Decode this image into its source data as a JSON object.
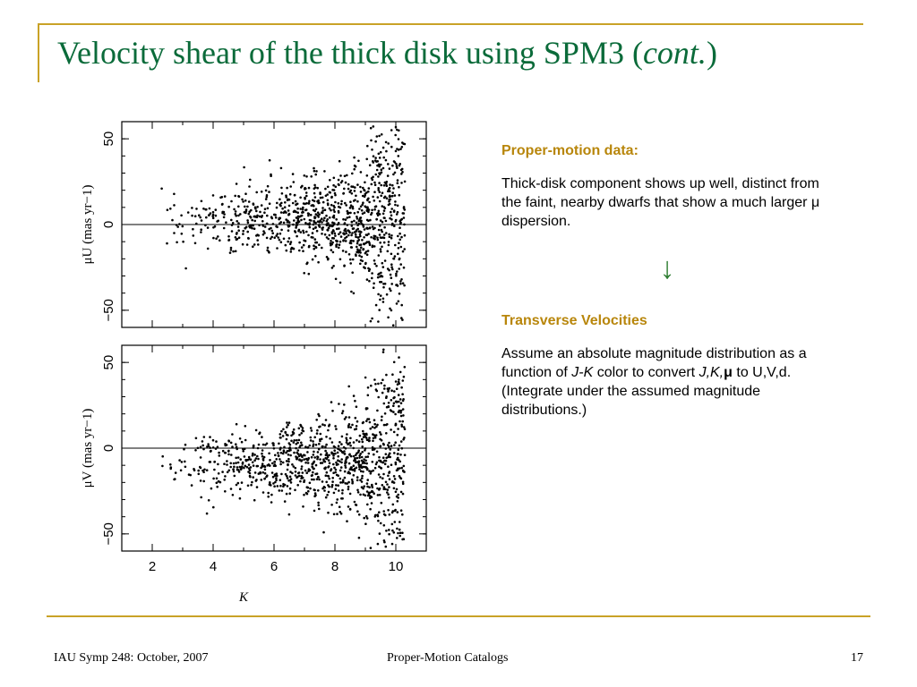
{
  "slide": {
    "title_main": "Velocity shear of the thick disk using SPM3 (",
    "title_italic": "cont.",
    "title_end": ")"
  },
  "right": {
    "heading1": "Proper-motion data:",
    "para1": "Thick-disk component shows up well, distinct from the faint, nearby dwarfs that show a much larger μ dispersion.",
    "arrow": "↓",
    "heading2": "Transverse Velocities",
    "para2": {
      "a": "Assume an absolute magnitude distribution as a function of ",
      "jk": "J-K",
      "b": " color to convert ",
      "jkm": "J,K,",
      "mu": "μ",
      "c": " to U,V,d.  (Integrate under the assumed magnitude distributions.)"
    }
  },
  "footer": {
    "left": "IAU Symp 248: October, 2007",
    "center": "Proper-Motion Catalogs",
    "right": "17"
  },
  "chart_data": [
    {
      "type": "scatter",
      "title": "",
      "xlabel": "K",
      "ylabel": "μU (mas yr−1)",
      "xlim": [
        1,
        11
      ],
      "ylim": [
        -60,
        60
      ],
      "yticks": [
        50,
        0,
        -50
      ],
      "xticks": [
        2,
        4,
        6,
        8,
        10
      ],
      "hline": 0,
      "note": "dense scatter of stars; spread grows toward faint K (>9)"
    },
    {
      "type": "scatter",
      "title": "",
      "xlabel": "K",
      "ylabel": "μV (mas yr−1)",
      "xlim": [
        1,
        11
      ],
      "ylim": [
        -60,
        60
      ],
      "yticks": [
        50,
        0,
        -50
      ],
      "xticks": [
        2,
        4,
        6,
        8,
        10
      ],
      "hline": 0,
      "note": "distribution centered near −10 mas/yr, larger dispersion at faint K"
    }
  ]
}
